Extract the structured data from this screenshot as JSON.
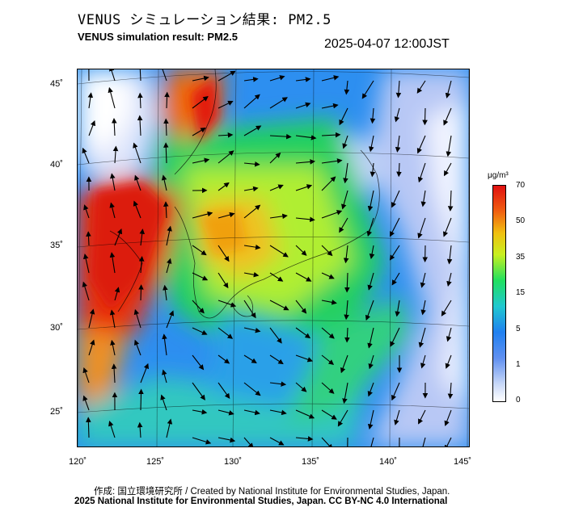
{
  "header": {
    "title_jp": "VENUS シミュレーション結果: PM2.5",
    "title_en": "VENUS simulation result: PM2.5",
    "timestamp": "2025-04-07 12:00JST"
  },
  "map": {
    "lat_labels": [
      "45˚",
      "40˚",
      "35˚",
      "30˚",
      "25˚"
    ],
    "lon_labels": [
      "120˚",
      "125˚",
      "130˚",
      "135˚",
      "140˚",
      "145˚"
    ],
    "region": "East Asia / Japan"
  },
  "colorbar": {
    "unit": "μg/m³",
    "ticks": [
      "70",
      "50",
      "35",
      "15",
      "5",
      "1",
      "0"
    ],
    "colors": [
      "#e01010",
      "#f06010",
      "#f0c010",
      "#c8f020",
      "#20e060",
      "#20c8d0",
      "#2080f0",
      "#6090f0",
      "#c8d8f8",
      "#ffffff"
    ]
  },
  "footer": {
    "credit_jp_en": "作成: 国立環境研究所 / Created by National Institute for Environmental Studies, Japan.",
    "copyright": "2025 National Institute for Environmental Studies, Japan. CC BY-NC 4.0 International"
  }
}
